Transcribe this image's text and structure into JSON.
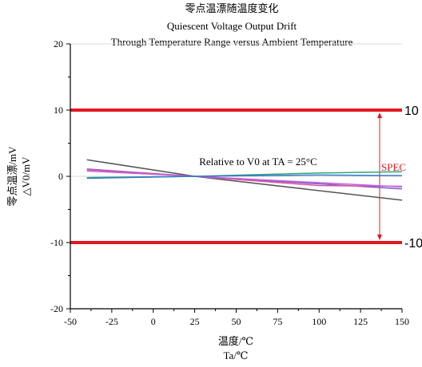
{
  "chart_data": {
    "type": "line",
    "title_lines": [
      "零点温漂随温度变化",
      "Quiescent Voltage Output Drift",
      "Through Temperature Range versus Ambient Temperature"
    ],
    "xlabel_lines": [
      "温度/℃",
      "Ta/℃"
    ],
    "ylabel_lines": [
      "零点温漂/mV",
      "△V0/mV"
    ],
    "xlim": [
      -50,
      150
    ],
    "ylim": [
      -20,
      20
    ],
    "x_ticks": [
      -50,
      -25,
      0,
      25,
      50,
      75,
      100,
      125,
      150
    ],
    "y_ticks": [
      -20,
      -10,
      0,
      10,
      20
    ],
    "grid": true,
    "annotation": "Relative to V0 at TA = 25°C",
    "spec": {
      "label": "SPEC",
      "upper": 10,
      "lower": -10,
      "upper_label": "10",
      "lower_label": "-10",
      "color": "#e3181f"
    },
    "series": [
      {
        "color": "#555555",
        "x": [
          -40,
          25,
          150
        ],
        "y": [
          2.5,
          0,
          -3.6
        ]
      },
      {
        "color": "#7a5cc8",
        "x": [
          -40,
          25,
          150
        ],
        "y": [
          1.1,
          0,
          -1.9
        ]
      },
      {
        "color": "#e0539d",
        "x": [
          -40,
          25,
          100,
          150
        ],
        "y": [
          1.0,
          0,
          -1.4,
          -1.5
        ]
      },
      {
        "color": "#c060e0",
        "x": [
          -40,
          25,
          150
        ],
        "y": [
          0.8,
          0,
          -1.6
        ]
      },
      {
        "color": "#2aa87a",
        "x": [
          -40,
          25,
          100,
          150
        ],
        "y": [
          -0.2,
          0,
          0.5,
          0.7
        ]
      },
      {
        "color": "#3a78c8",
        "x": [
          -40,
          25,
          100,
          150
        ],
        "y": [
          -0.3,
          0,
          0.2,
          0.1
        ]
      }
    ]
  }
}
